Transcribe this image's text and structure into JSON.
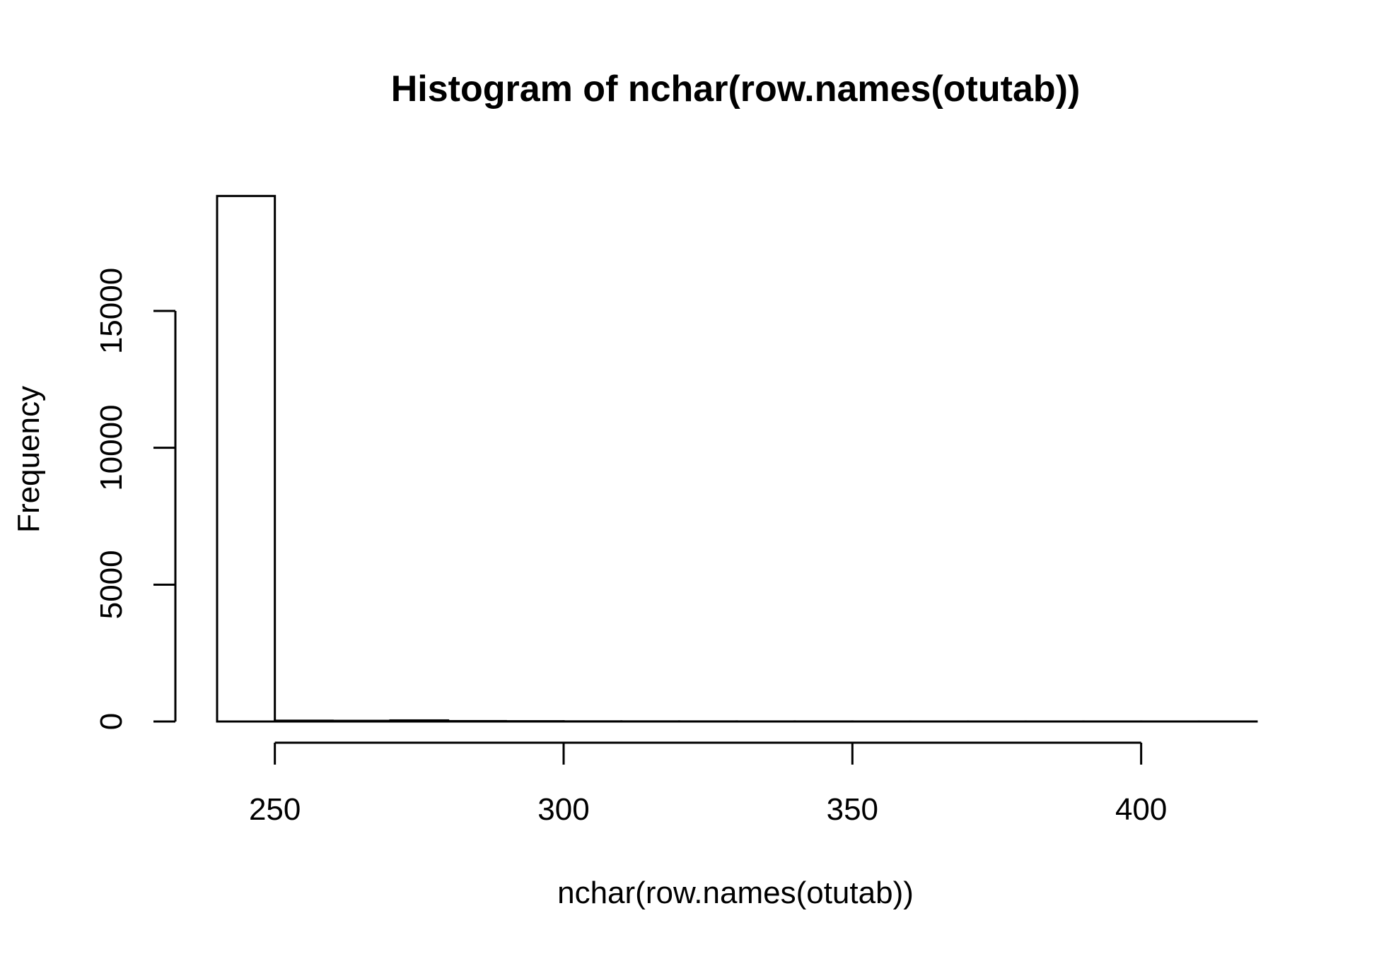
{
  "chart_data": {
    "type": "bar",
    "title": "Histogram of nchar(row.names(otutab))",
    "xlabel": "nchar(row.names(otutab))",
    "ylabel": "Frequency",
    "xlim": [
      240,
      420
    ],
    "ylim": [
      0,
      19200
    ],
    "x_ticks": [
      250,
      300,
      350,
      400
    ],
    "x_tick_labels": [
      "250",
      "300",
      "350",
      "400"
    ],
    "y_ticks": [
      0,
      5000,
      10000,
      15000
    ],
    "y_tick_labels": [
      "0",
      "5000",
      "10000",
      "15000"
    ],
    "bins": [
      {
        "start": 240,
        "end": 250,
        "count": 19200
      },
      {
        "start": 250,
        "end": 260,
        "count": 30
      },
      {
        "start": 260,
        "end": 270,
        "count": 25
      },
      {
        "start": 270,
        "end": 280,
        "count": 40
      },
      {
        "start": 280,
        "end": 290,
        "count": 15
      },
      {
        "start": 290,
        "end": 300,
        "count": 10
      },
      {
        "start": 300,
        "end": 310,
        "count": 5
      },
      {
        "start": 310,
        "end": 320,
        "count": 4
      },
      {
        "start": 320,
        "end": 330,
        "count": 3
      },
      {
        "start": 330,
        "end": 340,
        "count": 2
      },
      {
        "start": 340,
        "end": 350,
        "count": 2
      },
      {
        "start": 350,
        "end": 360,
        "count": 1
      },
      {
        "start": 360,
        "end": 370,
        "count": 1
      },
      {
        "start": 370,
        "end": 380,
        "count": 1
      },
      {
        "start": 380,
        "end": 390,
        "count": 1
      },
      {
        "start": 390,
        "end": 400,
        "count": 1
      },
      {
        "start": 400,
        "end": 410,
        "count": 1
      },
      {
        "start": 410,
        "end": 420,
        "count": 1
      }
    ],
    "bar_fill": "#ffffff",
    "bar_stroke": "#000000",
    "grid": false,
    "legend": "none"
  }
}
